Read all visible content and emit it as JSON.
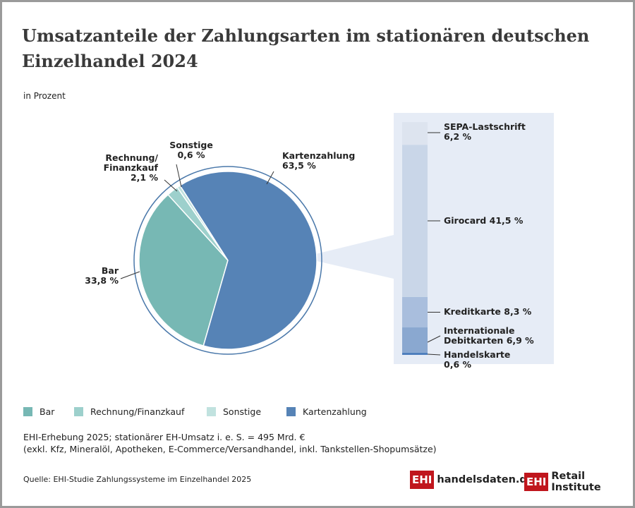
{
  "title": "Umsatzanteile der Zahlungsarten im stationären deutschen Einzelhandel 2024",
  "subtitle": "in Prozent",
  "note": [
    "EHI-Erhebung 2025; stationärer EH-Umsatz i. e. S. = 495 Mrd. €",
    "(exkl. Kfz, Mineralöl, Apotheken, E-Commerce/Versandhandel, inkl. Tankstellen-Shopumsätze)"
  ],
  "source": "Quelle: EHI-Studie Zahlungssysteme im Einzelhandel 2025",
  "logos": [
    {
      "mark": "EHI",
      "text": "handelsdaten.de"
    },
    {
      "mark": "EHI",
      "text": "Retail Institute"
    }
  ],
  "chart_data": [
    {
      "type": "pie",
      "categories": [
        "Bar",
        "Rechnung/Finanzkauf",
        "Sonstige",
        "Kartenzahlung"
      ],
      "values": [
        33.8,
        2.1,
        0.6,
        63.5
      ],
      "value_labels": [
        "33,8 %",
        "2,1 %",
        "0,6 %",
        "63,5 %"
      ],
      "colors": [
        "#77b8b4",
        "#9dd0cc",
        "#c1e2df",
        "#5683b6"
      ],
      "legend": "bottom"
    },
    {
      "type": "stacked-bar",
      "categories": [
        "Handelskarte",
        "Internationale Debitkarten",
        "Kreditkarte",
        "Girocard",
        "SEPA-Lastschrift"
      ],
      "values": [
        0.6,
        6.9,
        8.3,
        41.5,
        6.2
      ],
      "value_labels": [
        "0,6 %",
        "6,9 %",
        "8,3 %",
        "41,5 %",
        "6,2 %"
      ],
      "colors": [
        "#4f7fbd",
        "#8aa8d0",
        "#a9bedd",
        "#c9d6e8",
        "#dde4ef"
      ]
    }
  ]
}
